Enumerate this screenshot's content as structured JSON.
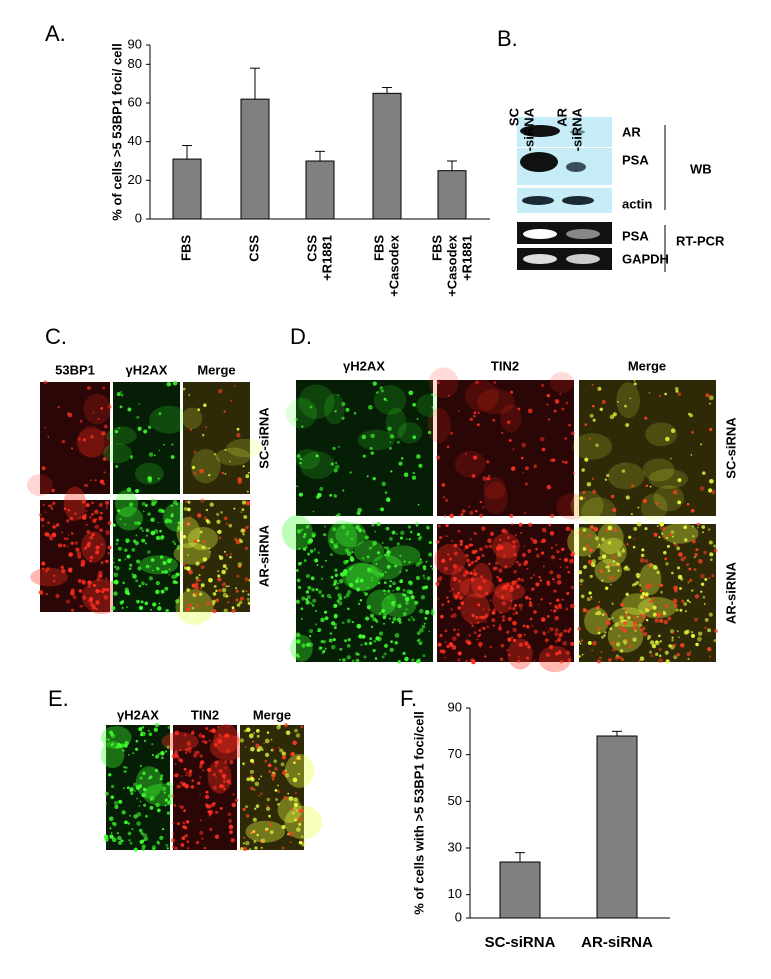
{
  "chart_data": [
    {
      "type": "bar",
      "y_label": "% of cells >5 53BP1 foci/ cell",
      "categories": [
        [
          "FBS"
        ],
        [
          "CSS"
        ],
        [
          "CSS",
          "+R1881"
        ],
        [
          "FBS",
          "+Casodex"
        ],
        [
          "FBS",
          "+Casodex",
          "+R1881"
        ]
      ],
      "values": [
        31,
        62,
        30,
        65,
        25
      ],
      "errors": [
        7,
        16,
        5,
        3,
        5
      ],
      "color": "#808080",
      "ylim": [
        0,
        90
      ],
      "yticks": [
        0,
        20,
        40,
        60,
        80,
        90
      ]
    },
    {
      "type": "bar",
      "y_label": "% of cells with >5 53BP1 foci/cell",
      "categories": [
        [
          "SC-siRNA"
        ],
        [
          "AR-siRNA"
        ]
      ],
      "values": [
        24,
        78
      ],
      "errors": [
        4,
        2
      ],
      "color": "#808080",
      "ylim": [
        0,
        90
      ],
      "yticks": [
        0,
        10,
        30,
        50,
        70,
        90
      ]
    }
  ],
  "letters": [
    "A.",
    "B.",
    "C.",
    "D.",
    "E.",
    "F."
  ],
  "blot": {
    "columns": [
      [
        "SC",
        "-siRNA"
      ],
      [
        "AR",
        "-siRNA"
      ]
    ],
    "rows": [
      "AR",
      "PSA",
      "actin",
      "PSA",
      "GAPDH"
    ],
    "groups": [
      "WB",
      "RT-PCR"
    ]
  },
  "panel_c": {
    "columns": [
      "53BP1",
      "γH2AX",
      "Merge"
    ],
    "rows": [
      "SC-siRNA",
      "AR-siRNA"
    ]
  },
  "panel_d": {
    "columns": [
      "γH2AX",
      "TIN2",
      "Merge"
    ],
    "rows": [
      "SC-siRNA",
      "AR-siRNA"
    ]
  },
  "panel_e": {
    "columns": [
      "γH2AX",
      "TIN2",
      "Merge"
    ]
  }
}
